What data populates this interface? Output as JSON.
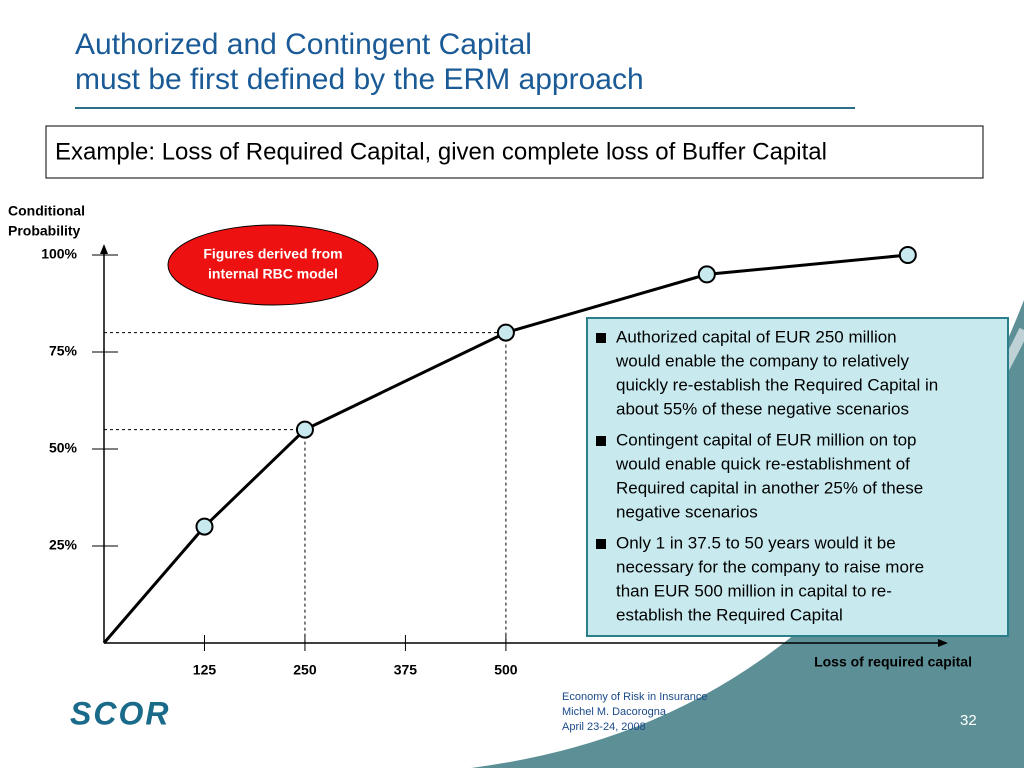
{
  "slide": {
    "title_lines": [
      "Authorized and Contingent Capital",
      "must be first defined by the ERM approach"
    ],
    "example": "Example: Loss of Required Capital, given complete loss of Buffer Capital",
    "note_lines": [
      "Figures derived from",
      "internal RBC model"
    ],
    "bullets": [
      [
        "Authorized capital of EUR 250 million",
        "would enable the company to relatively",
        "quickly re-establish the Required Capital in",
        "about 55% of these negative scenarios"
      ],
      [
        "Contingent capital of EUR million on top",
        "would enable quick re-establishment of",
        "Required capital in another 25% of these",
        "negative scenarios"
      ],
      [
        "Only 1 in 37.5 to 50 years would it be",
        "necessary for the company to raise more",
        "than EUR 500 million in capital to re-",
        "establish the Required Capital"
      ]
    ],
    "footer_lines": [
      "Economy of Risk in Insurance",
      "Michel M. Dacorogna",
      "April 23-24, 2008"
    ],
    "page_number": "32",
    "logo": "SCOR"
  },
  "chart_data": {
    "type": "line",
    "y_label_lines": [
      "Conditional",
      "Probability"
    ],
    "x_label": "Loss of required capital",
    "x": [
      0,
      125,
      250,
      500,
      750,
      1000
    ],
    "series": [
      {
        "color": "#000000",
        "values": [
          0,
          30,
          55,
          80,
          95,
          100
        ]
      }
    ],
    "xlim": [
      0,
      1050
    ],
    "ylim": [
      0,
      100
    ],
    "xticks": [
      125,
      250,
      375,
      500
    ],
    "yticks": [
      {
        "value": 25,
        "label": "25%"
      },
      {
        "value": 50,
        "label": "50%"
      },
      {
        "value": 75,
        "label": "75%"
      },
      {
        "value": 100,
        "label": "100%"
      }
    ],
    "guides": [
      2,
      3
    ]
  }
}
